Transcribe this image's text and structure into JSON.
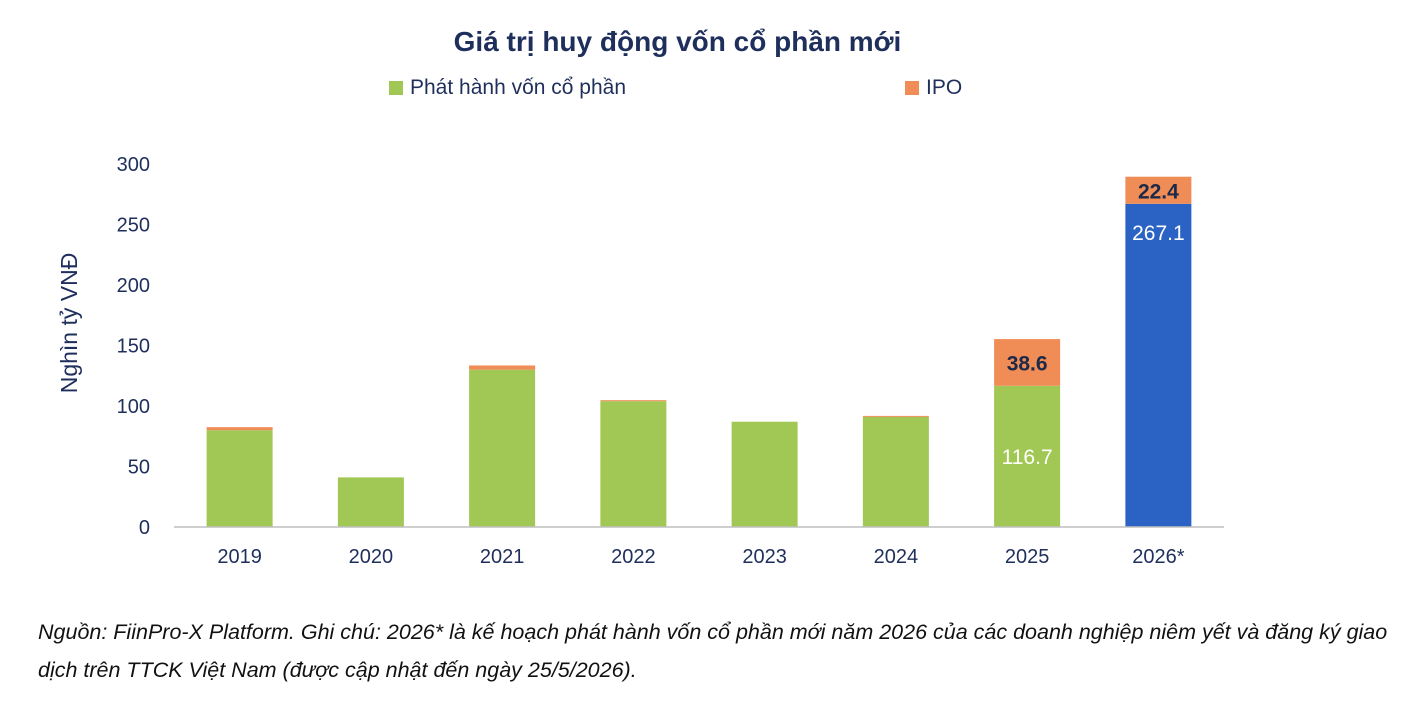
{
  "chart_data": {
    "type": "bar",
    "stacked": true,
    "title": "Giá trị huy động vốn cổ phần mới",
    "ylabel": "Nghìn tỷ VNĐ",
    "xlabel": "",
    "ylim": [
      0,
      300
    ],
    "yticks": [
      "0",
      "50",
      "100",
      "150",
      "200",
      "250",
      "300"
    ],
    "categories": [
      "2019",
      "2020",
      "2021",
      "2022",
      "2023",
      "2024",
      "2025",
      "2026*"
    ],
    "series": [
      {
        "name": "Phát hành vốn cổ phần",
        "color": "#a1c855",
        "values": [
          80,
          41,
          130,
          104,
          87,
          91,
          116.7,
          267.1
        ],
        "data_labels": [
          null,
          null,
          null,
          null,
          null,
          null,
          "116.7",
          "267.1"
        ]
      },
      {
        "name": "IPO",
        "color": "#f08c55",
        "values": [
          2.5,
          0,
          3.5,
          0.8,
          0,
          0.8,
          38.6,
          22.4
        ],
        "data_labels": [
          null,
          null,
          null,
          null,
          null,
          null,
          "38.6",
          "22.4"
        ]
      }
    ],
    "highlight": {
      "category": "2026*",
      "primary_color": "#2a63c4"
    },
    "grid": false,
    "legend_position": "top"
  },
  "note": "Nguồn: FiinPro-X Platform. Ghi chú: 2026* là kế hoạch phát hành vốn cổ phần mới năm 2026 của các doanh nghiệp niêm yết và đăng ký giao dịch trên TTCK Việt Nam (được cập nhật đến ngày 25/5/2026)."
}
